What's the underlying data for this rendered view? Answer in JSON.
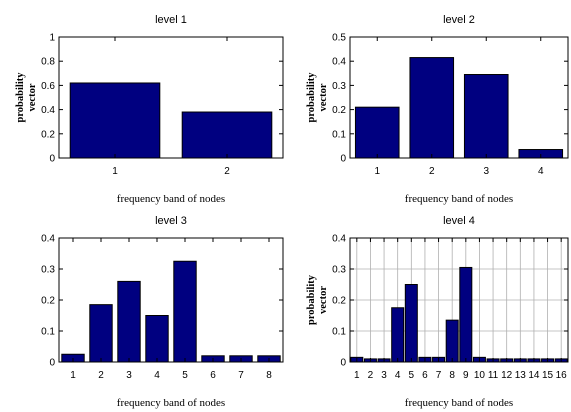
{
  "chart_data": [
    {
      "type": "bar",
      "title": "level 1",
      "xlabel": "frequency band of nodes",
      "ylabel_lines": [
        "probability",
        "vector"
      ],
      "categories": [
        "1",
        "2"
      ],
      "values": [
        0.62,
        0.38
      ],
      "ylim": [
        0,
        1
      ],
      "yticks": [
        "0",
        "0.2",
        "0.4",
        "0.6",
        "0.8",
        "1"
      ],
      "grid": false,
      "color": "#000080"
    },
    {
      "type": "bar",
      "title": "level 2",
      "xlabel": "frequency band of nodes",
      "ylabel_lines": [
        "probability",
        "vector"
      ],
      "categories": [
        "1",
        "2",
        "3",
        "4"
      ],
      "values": [
        0.21,
        0.415,
        0.345,
        0.035
      ],
      "ylim": [
        0,
        0.5
      ],
      "yticks": [
        "0",
        "0.1",
        "0.2",
        "0.3",
        "0.4",
        "0.5"
      ],
      "grid": false,
      "color": "#000080"
    },
    {
      "type": "bar",
      "title": "level 3",
      "xlabel": "frequency band of nodes",
      "ylabel_lines": [],
      "categories": [
        "1",
        "2",
        "3",
        "4",
        "5",
        "6",
        "7",
        "8"
      ],
      "values": [
        0.025,
        0.185,
        0.26,
        0.15,
        0.325,
        0.02,
        0.02,
        0.02
      ],
      "ylim": [
        0,
        0.4
      ],
      "yticks": [
        "0",
        "0.1",
        "0.2",
        "0.3",
        "0.4"
      ],
      "grid": false,
      "color": "#000080"
    },
    {
      "type": "bar",
      "title": "level 4",
      "xlabel": "frequency band of nodes",
      "ylabel_lines": [
        "probability",
        "vector"
      ],
      "categories": [
        "1",
        "2",
        "3",
        "4",
        "5",
        "6",
        "7",
        "8",
        "9",
        "10",
        "11",
        "12",
        "13",
        "14",
        "15",
        "16"
      ],
      "values": [
        0.015,
        0.01,
        0.01,
        0.175,
        0.25,
        0.015,
        0.015,
        0.135,
        0.305,
        0.015,
        0.01,
        0.01,
        0.01,
        0.01,
        0.01,
        0.01
      ],
      "ylim": [
        0,
        0.4
      ],
      "yticks": [
        "0",
        "0.1",
        "0.2",
        "0.3",
        "0.4"
      ],
      "grid": true,
      "color": "#000080"
    }
  ]
}
